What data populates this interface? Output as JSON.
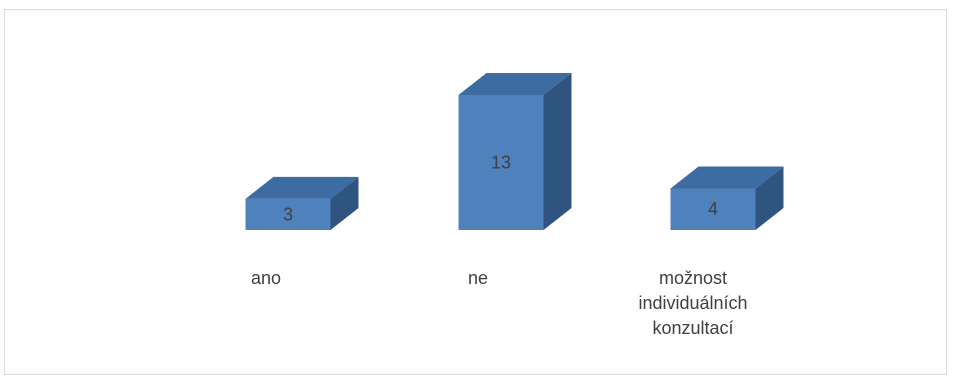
{
  "chart_data": {
    "type": "bar",
    "style": "3d-column",
    "categories": [
      "ano",
      "ne",
      "možnost individuálních konzultací"
    ],
    "values": [
      3,
      13,
      4
    ],
    "title": "",
    "xlabel": "",
    "ylabel": "",
    "ylim": [
      0,
      13
    ],
    "grid": false,
    "legend": "none",
    "data_labels": true
  },
  "category_labels": [
    "ano",
    "ne",
    "možnost\nindividuálních\nkonzultací"
  ],
  "colors": {
    "bar_front": "#4f81bd",
    "bar_top": "#3d6ca3",
    "bar_side": "#2f5480",
    "label_text": "#404040",
    "frame_border": "#d9d9d9"
  }
}
